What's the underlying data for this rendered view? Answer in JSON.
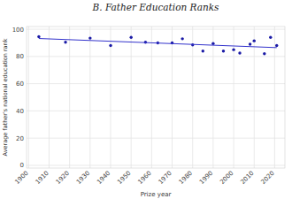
{
  "chart_data": {
    "type": "scatter",
    "title": "B. Father Education Ranks",
    "x_label": "Prize year",
    "y_label": "Average father's national education rank",
    "xlim": [
      1899,
      2025
    ],
    "xticks": [
      1900,
      1910,
      1920,
      1930,
      1940,
      1950,
      1960,
      1970,
      1980,
      1990,
      2000,
      2010,
      2020
    ],
    "ylim": [
      -2,
      102
    ],
    "yticks": [
      0,
      20,
      40,
      60,
      80,
      100
    ],
    "grid": true,
    "series": [
      {
        "type": "scatter",
        "color": "#1a1aa6",
        "marker": "circle",
        "x": [
          1905,
          1918,
          1930,
          1940,
          1950,
          1957,
          1963,
          1970,
          1975,
          1980,
          1985,
          1990,
          1995,
          2000,
          2003,
          2008,
          2010,
          2015,
          2018,
          2021
        ],
        "values": [
          94.5,
          90.5,
          93.5,
          88,
          94,
          90.5,
          90,
          90,
          93,
          88.5,
          84,
          89.5,
          84,
          85,
          82.5,
          89,
          91.5,
          82,
          94,
          88
        ]
      },
      {
        "type": "line",
        "color": "#3333cc",
        "line_style": "solid",
        "x": [
          1905,
          2021
        ],
        "values": [
          93.2,
          86.5
        ]
      }
    ]
  }
}
